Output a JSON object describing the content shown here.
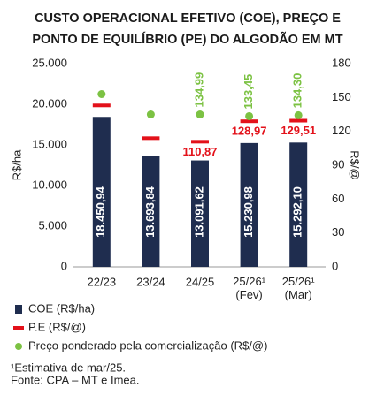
{
  "chart_data": {
    "type": "bar",
    "title": [
      "CUSTO OPERACIONAL EFETIVO (COE), PREÇO E",
      "PONTO DE EQUILÍBRIO (PE) DO ALGODÃO EM MT"
    ],
    "categories": [
      "22/23",
      "23/24",
      "24/25",
      "25/26¹ (Fev)",
      "25/26¹ (Mar)"
    ],
    "series": [
      {
        "name": "COE (R$/ha)",
        "color": "#1f2d4f",
        "values": [
          18450.94,
          13693.84,
          13091.62,
          15230.98,
          15292.1
        ],
        "value_labels": [
          "18.450,94",
          "13.693,84",
          "13.091,62",
          "15.230,98",
          "15.292,10"
        ]
      },
      {
        "name": "P.E (R$/@)",
        "color": "#e3111a",
        "axis": "y2",
        "values": [
          143,
          114,
          110.87,
          128.97,
          129.51
        ],
        "value_labels": [
          null,
          null,
          "110,87",
          "128,97",
          "129,51"
        ]
      },
      {
        "name": "Preço ponderado pela comercialização (R$/@)",
        "color": "#7cc243",
        "axis": "y2",
        "values": [
          153,
          135,
          134.99,
          133.45,
          134.3
        ],
        "value_labels": [
          null,
          null,
          "134,99",
          "133,45",
          "134,30"
        ]
      }
    ],
    "ylabel": "R$/ha",
    "y2label": "R$/@",
    "ylim": [
      0,
      25000
    ],
    "yticks": [
      {
        "value": 0,
        "label": "0"
      },
      {
        "value": 5000,
        "label": "5.000"
      },
      {
        "value": 10000,
        "label": "10.000"
      },
      {
        "value": 15000,
        "label": "15.000"
      },
      {
        "value": 20000,
        "label": "20.000"
      },
      {
        "value": 25000,
        "label": "25.000"
      }
    ],
    "y2lim": [
      0,
      180
    ],
    "y2ticks": [
      0,
      30,
      60,
      90,
      120,
      150,
      180
    ],
    "notes": [
      "¹Estimativa de mar/25.",
      "Fonte: CPA – MT e Imea."
    ]
  }
}
